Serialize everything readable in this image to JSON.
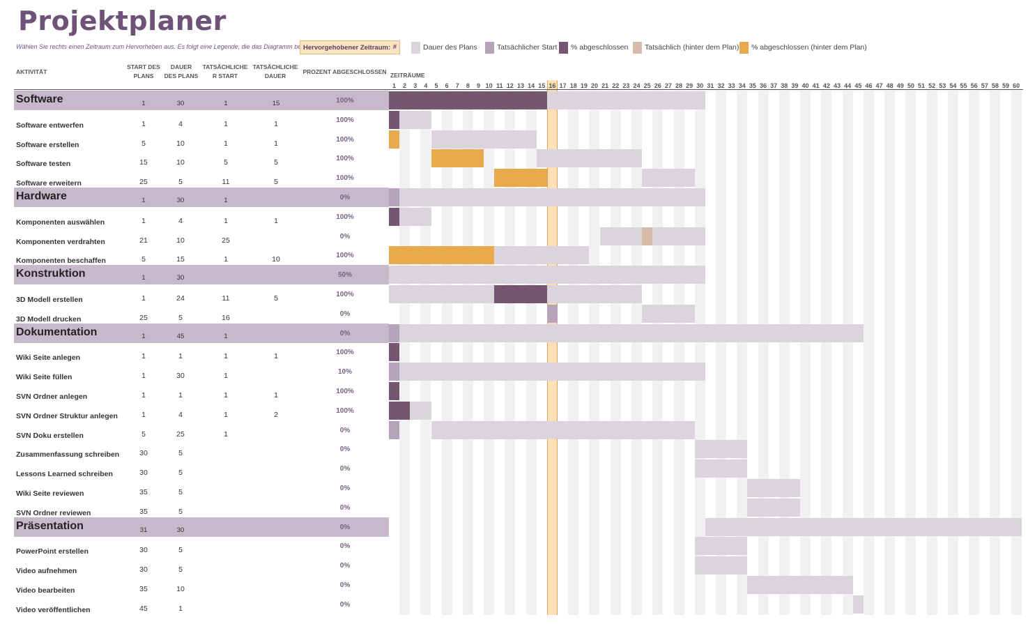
{
  "title": "Projektplaner",
  "instruction": "Wählen Sie rechts einen Zeitraum zum Hervorheben aus.  Es folgt eine Legende, die das Diagramm beschreibt.",
  "highlight": {
    "label": "Hervorgehobener Zeitraum:",
    "value": "#",
    "period": 16
  },
  "legend": [
    {
      "label": "Dauer des Plans",
      "color": "#dcd4dd",
      "icon": "plan-swatch"
    },
    {
      "label": "Tatsächlicher Start",
      "color": "#b6a2bb",
      "icon": "actual-start-swatch"
    },
    {
      "label": "% abgeschlossen",
      "color": "#765573",
      "icon": "complete-swatch"
    },
    {
      "label": "Tatsächlich (hinter dem Plan)",
      "color": "#d6bba8",
      "icon": "behind-swatch"
    },
    {
      "label": "% abgeschlossen (hinter dem Plan)",
      "color": "#e8a94c",
      "icon": "complete-behind-swatch"
    }
  ],
  "headers": {
    "activity": "AKTIVITÄT",
    "plan_start": [
      "START DES",
      "PLANS"
    ],
    "plan_duration": [
      "DAUER",
      "DES PLANS"
    ],
    "actual_start": [
      "TATSÄCHLICHE",
      "R START"
    ],
    "actual_duration": [
      "TATSÄCHLICHE",
      "DAUER"
    ],
    "percent": "PROZENT ABGESCHLOSSEN",
    "periods": "ZEITRÄUME"
  },
  "period_count": 60,
  "rows": [
    {
      "name": "Software",
      "category": true,
      "plan_start": "1",
      "plan_dur": "30",
      "act_start": "1",
      "act_dur": "15",
      "pct": "100%"
    },
    {
      "name": "Software entwerfen",
      "plan_start": "1",
      "plan_dur": "4",
      "act_start": "1",
      "act_dur": "1",
      "pct": "100%"
    },
    {
      "name": "Software erstellen",
      "plan_start": "5",
      "plan_dur": "10",
      "act_start": "1",
      "act_dur": "1",
      "pct": "100%"
    },
    {
      "name": "Software testen",
      "plan_start": "15",
      "plan_dur": "10",
      "act_start": "5",
      "act_dur": "5",
      "pct": "100%"
    },
    {
      "name": "Software erweitern",
      "plan_start": "25",
      "plan_dur": "5",
      "act_start": "11",
      "act_dur": "5",
      "pct": "100%"
    },
    {
      "name": "Hardware",
      "category": true,
      "plan_start": "1",
      "plan_dur": "30",
      "act_start": "1",
      "act_dur": "",
      "pct": "0%"
    },
    {
      "name": "Komponenten auswählen",
      "plan_start": "1",
      "plan_dur": "4",
      "act_start": "1",
      "act_dur": "1",
      "pct": "100%"
    },
    {
      "name": "Komponenten verdrahten",
      "plan_start": "21",
      "plan_dur": "10",
      "act_start": "25",
      "act_dur": "",
      "pct": "0%"
    },
    {
      "name": "Komponenten beschaffen",
      "plan_start": "5",
      "plan_dur": "15",
      "act_start": "1",
      "act_dur": "10",
      "pct": "100%"
    },
    {
      "name": "Konstruktion",
      "category": true,
      "plan_start": "1",
      "plan_dur": "30",
      "act_start": "",
      "act_dur": "",
      "pct": "50%"
    },
    {
      "name": "3D Modell erstellen",
      "plan_start": "1",
      "plan_dur": "24",
      "act_start": "11",
      "act_dur": "5",
      "pct": "100%"
    },
    {
      "name": "3D Modell drucken",
      "plan_start": "25",
      "plan_dur": "5",
      "act_start": "16",
      "act_dur": "",
      "pct": "0%"
    },
    {
      "name": "Dokumentation",
      "category": true,
      "plan_start": "1",
      "plan_dur": "45",
      "act_start": "1",
      "act_dur": "",
      "pct": "0%"
    },
    {
      "name": "Wiki Seite anlegen",
      "plan_start": "1",
      "plan_dur": "1",
      "act_start": "1",
      "act_dur": "1",
      "pct": "100%"
    },
    {
      "name": "Wiki Seite füllen",
      "plan_start": "1",
      "plan_dur": "30",
      "act_start": "1",
      "act_dur": "",
      "pct": "10%"
    },
    {
      "name": "SVN Ordner anlegen",
      "plan_start": "1",
      "plan_dur": "1",
      "act_start": "1",
      "act_dur": "1",
      "pct": "100%"
    },
    {
      "name": "SVN Ordner Struktur anlegen",
      "plan_start": "1",
      "plan_dur": "4",
      "act_start": "1",
      "act_dur": "2",
      "pct": "100%"
    },
    {
      "name": "SVN Doku erstellen",
      "plan_start": "5",
      "plan_dur": "25",
      "act_start": "1",
      "act_dur": "",
      "pct": "0%"
    },
    {
      "name": "Zusammenfassung schreiben",
      "plan_start": "30",
      "plan_dur": "5",
      "act_start": "",
      "act_dur": "",
      "pct": "0%"
    },
    {
      "name": "Lessons Learned schreiben",
      "plan_start": "30",
      "plan_dur": "5",
      "act_start": "",
      "act_dur": "",
      "pct": "0%"
    },
    {
      "name": "Wiki Seite reviewen",
      "plan_start": "35",
      "plan_dur": "5",
      "act_start": "",
      "act_dur": "",
      "pct": "0%"
    },
    {
      "name": "SVN Ordner reviewen",
      "plan_start": "35",
      "plan_dur": "5",
      "act_start": "",
      "act_dur": "",
      "pct": "0%"
    },
    {
      "name": "Präsentation",
      "category": true,
      "plan_start": "31",
      "plan_dur": "30",
      "act_start": "",
      "act_dur": "",
      "pct": "0%"
    },
    {
      "name": "PowerPoint erstellen",
      "plan_start": "30",
      "plan_dur": "5",
      "act_start": "",
      "act_dur": "",
      "pct": "0%"
    },
    {
      "name": "Video aufnehmen",
      "plan_start": "30",
      "plan_dur": "5",
      "act_start": "",
      "act_dur": "",
      "pct": "0%"
    },
    {
      "name": "Video bearbeiten",
      "plan_start": "35",
      "plan_dur": "10",
      "act_start": "",
      "act_dur": "",
      "pct": "0%"
    },
    {
      "name": "Video veröffentlichen",
      "plan_start": "45",
      "plan_dur": "1",
      "act_start": "",
      "act_dur": "",
      "pct": "0%"
    }
  ]
}
